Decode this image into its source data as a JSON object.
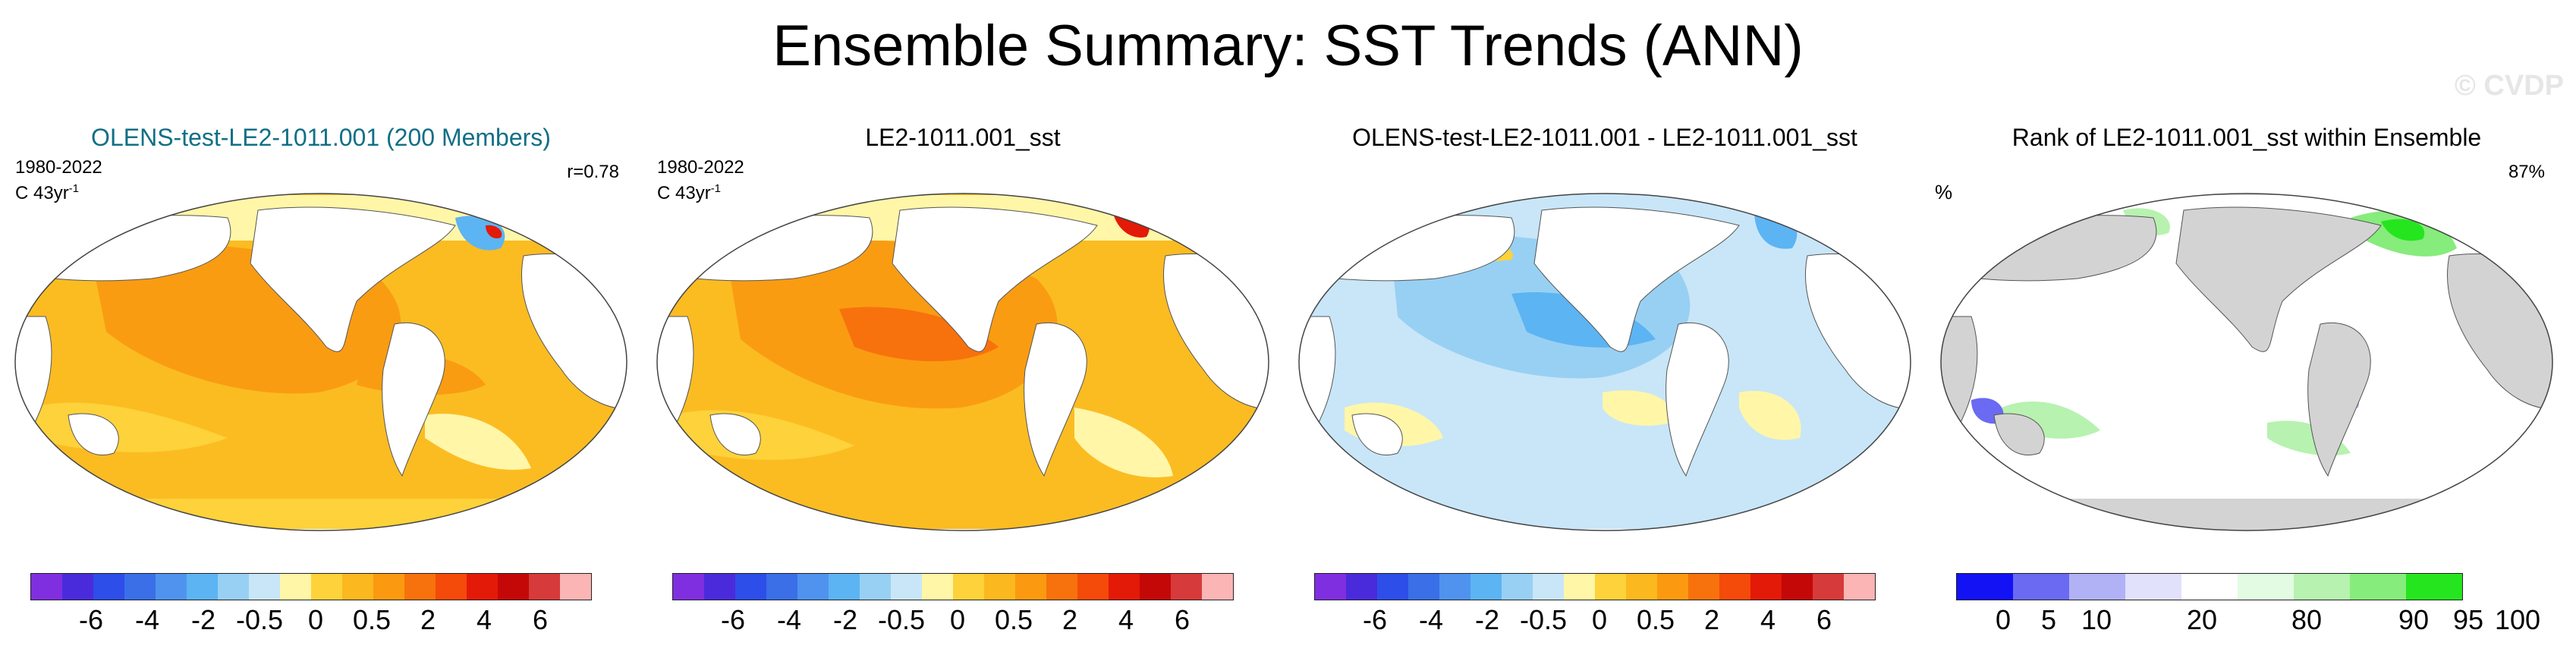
{
  "title": "Ensemble Summary: SST Trends (ANN)",
  "watermark": "© CVDP",
  "colorbar_colors": [
    "#7f2fe0",
    "#4a2bdc",
    "#2d4ee8",
    "#3a6fe8",
    "#4f93ee",
    "#5cb4f3",
    "#98d0f3",
    "#c8e6f8",
    "#fff6a8",
    "#fdd23a",
    "#fbb81f",
    "#fb9a10",
    "#f7720c",
    "#f44a0a",
    "#e31a08",
    "#c40808",
    "#d63a3a",
    "#fbb5b5"
  ],
  "colorbar_ticks": [
    "-6",
    "-4",
    "-2",
    "-0.5",
    "0",
    "0.5",
    "2",
    "4",
    "6"
  ],
  "rank_colors": [
    "#1212f5",
    "#6a6af2",
    "#b1b1f6",
    "#e1e1fb",
    "#ffffff",
    "#e3fbe3",
    "#b7f2b0",
    "#86ec7b",
    "#25e51f"
  ],
  "rank_ticks": [
    "0",
    "5",
    "10",
    "20",
    "80",
    "90",
    "95",
    "100"
  ],
  "panels": [
    {
      "title": "OLENS-test-LE2-1011.001 (200 Members)",
      "period": "1980-2022",
      "units": "C 43yr",
      "units_exp": "-1",
      "right": "r=0.78"
    },
    {
      "title": "LE2-1011.001_sst",
      "period": "1980-2022",
      "units": "C 43yr",
      "units_exp": "-1"
    },
    {
      "title": "OLENS-test-LE2-1011.001 - LE2-1011.001_sst"
    },
    {
      "title": "Rank of LE2-1011.001_sst within Ensemble",
      "left": "%",
      "right": "87%"
    }
  ]
}
